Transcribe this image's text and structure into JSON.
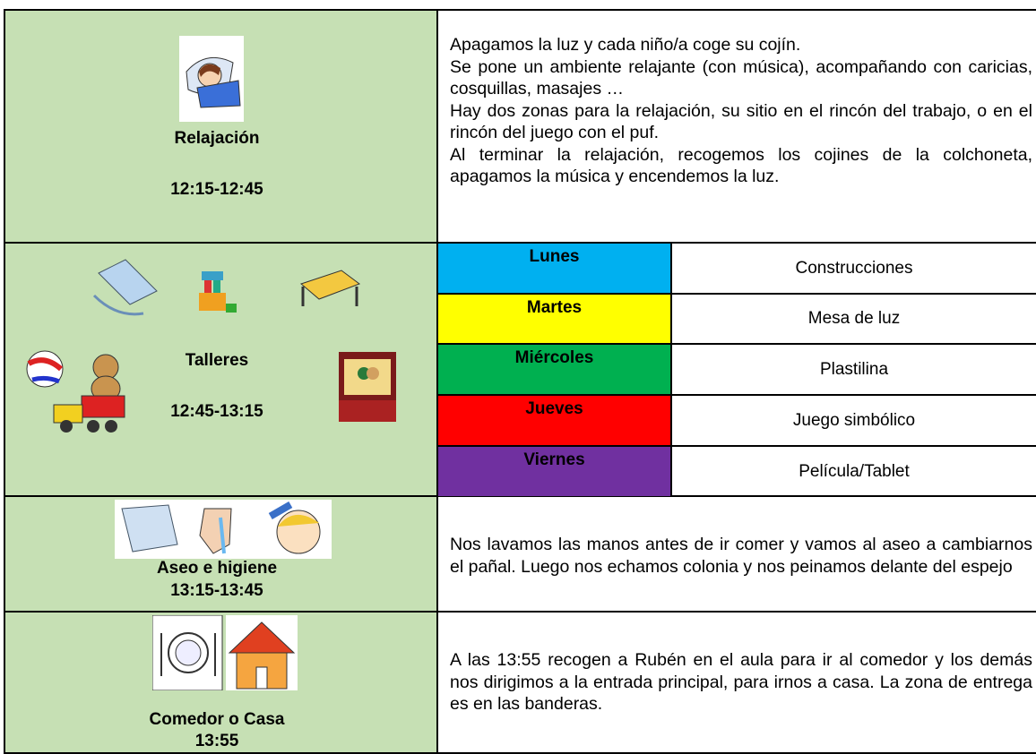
{
  "rows": [
    {
      "label": "Relajación",
      "time": "12:15-12:45",
      "description": [
        "Apagamos la luz y cada niño/a coge su cojín.",
        "Se pone un ambiente relajante (con música), acompañando con caricias, cosquillas, masajes …",
        "Hay dos zonas para la relajación, su sitio en el rincón del trabajo, o en el rincón del juego con el puf.",
        "Al terminar la relajación, recogemos los cojines de la colchoneta, apagamos la música y encendemos la luz."
      ]
    },
    {
      "label": "Talleres",
      "time": "12:45-13:15",
      "schedule": [
        {
          "day": "Lunes",
          "activity": "Construcciones"
        },
        {
          "day": "Martes",
          "activity": "Mesa de luz"
        },
        {
          "day": "Miércoles",
          "activity": "Plastilina"
        },
        {
          "day": "Jueves",
          "activity": "Juego simbólico"
        },
        {
          "day": "Viernes",
          "activity": "Película/Tablet"
        }
      ]
    },
    {
      "label": "Aseo e higiene",
      "time": "13:15-13:45",
      "description": [
        "Nos lavamos las manos antes de ir comer y vamos al aseo a cambiarnos el pañal. Luego nos echamos colonia y nos peinamos delante del espejo"
      ]
    },
    {
      "label": "Comedor o Casa",
      "time": "13:55",
      "description": [
        "A las 13:55 recogen a Rubén en el aula para ir al comedor y los demás nos dirigimos a la entrada principal, para irnos a casa. La zona de entrega es en las banderas."
      ]
    }
  ]
}
